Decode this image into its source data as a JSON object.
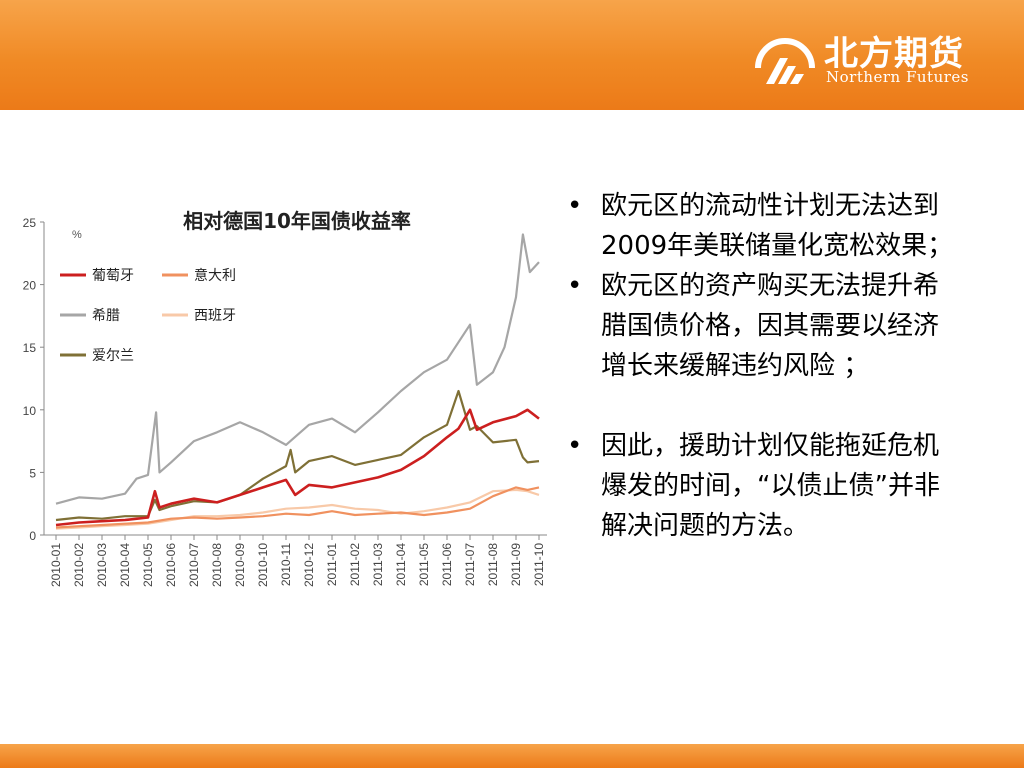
{
  "brand": {
    "name_cn": "北方期货",
    "name_en": "Northern Futures",
    "colors": {
      "header": "#f08a25",
      "footer": "#ec7a18",
      "text": "#ffffff"
    }
  },
  "bullets": [
    "欧元区的流动性计划无法达到2009年美联储量化宽松效果；",
    "欧元区的资产购买无法提升希腊国债价格，因其需要以经济增长来缓解违约风险 ；",
    "因此，援助计划仅能拖延危机爆发的时间，“以债止债”并非解决问题的方法。"
  ],
  "chart_data": {
    "type": "line",
    "title": "相对德国10年国债收益率",
    "ylabel": "%",
    "ylim": [
      0,
      25
    ],
    "yticks": [
      0,
      5,
      10,
      15,
      20,
      25
    ],
    "xticks": [
      "2010-01",
      "2010-02",
      "2010-03",
      "2010-04",
      "2010-05",
      "2010-06",
      "2010-07",
      "2010-08",
      "2010-09",
      "2010-10",
      "2010-11",
      "2010-12",
      "2011-01",
      "2011-02",
      "2011-03",
      "2011-04",
      "2011-05",
      "2011-06",
      "2011-07",
      "2011-08",
      "2011-09",
      "2011-10"
    ],
    "legend_position": "top-left",
    "series": [
      {
        "name": "葡萄牙",
        "color": "#cc1f1f",
        "x": [
          0,
          1,
          2,
          3,
          4,
          4.3,
          4.5,
          5,
          6,
          7,
          8,
          9,
          10,
          10.4,
          11,
          12,
          13,
          14,
          15,
          16,
          17,
          17.5,
          18,
          18.3,
          19,
          20,
          20.5,
          21
        ],
        "values": [
          0.8,
          1,
          1.1,
          1.2,
          1.4,
          3.5,
          2.2,
          2.5,
          2.9,
          2.6,
          3.2,
          3.8,
          4.4,
          3.2,
          4,
          3.8,
          4.2,
          4.6,
          5.2,
          6.3,
          7.8,
          8.5,
          10,
          8.4,
          9,
          9.5,
          10,
          9.3
        ]
      },
      {
        "name": "意大利",
        "color": "#f0915f",
        "x": [
          0,
          1,
          2,
          3,
          4,
          5,
          6,
          7,
          8,
          9,
          10,
          11,
          12,
          13,
          14,
          15,
          16,
          17,
          18,
          19,
          20,
          20.5,
          21
        ],
        "values": [
          0.6,
          0.7,
          0.8,
          0.9,
          1,
          1.3,
          1.4,
          1.3,
          1.4,
          1.5,
          1.7,
          1.6,
          1.9,
          1.6,
          1.7,
          1.8,
          1.6,
          1.8,
          2.1,
          3.1,
          3.8,
          3.6,
          3.8
        ]
      },
      {
        "name": "希腊",
        "color": "#a6a6a6",
        "x": [
          0,
          1,
          2,
          3,
          3.5,
          4,
          4.35,
          4.5,
          5,
          6,
          7,
          8,
          9,
          10,
          10.5,
          11,
          12,
          13,
          14,
          15,
          16,
          17,
          18,
          18.3,
          19,
          19.5,
          20,
          20.3,
          20.6,
          21
        ],
        "values": [
          2.5,
          3,
          2.9,
          3.3,
          4.5,
          4.8,
          9.8,
          5,
          5.8,
          7.5,
          8.2,
          9,
          8.2,
          7.2,
          8,
          8.8,
          9.3,
          8.2,
          9.8,
          11.5,
          13,
          14,
          16.8,
          12,
          13,
          15,
          19,
          24,
          21,
          21.8
        ]
      },
      {
        "name": "西班牙",
        "color": "#f8c9a8",
        "x": [
          0,
          1,
          2,
          3,
          4,
          5,
          6,
          7,
          8,
          9,
          10,
          11,
          12,
          13,
          14,
          15,
          16,
          17,
          18,
          19,
          20,
          20.5,
          21
        ],
        "values": [
          0.5,
          0.6,
          0.7,
          0.8,
          0.9,
          1.2,
          1.5,
          1.5,
          1.6,
          1.8,
          2.1,
          2.2,
          2.4,
          2.1,
          2,
          1.7,
          1.9,
          2.2,
          2.6,
          3.5,
          3.6,
          3.5,
          3.2
        ]
      },
      {
        "name": "爱尔兰",
        "color": "#7f7036",
        "x": [
          0,
          1,
          2,
          3,
          4,
          4.3,
          4.5,
          5,
          6,
          7,
          8,
          9,
          10,
          10.2,
          10.4,
          11,
          12,
          13,
          14,
          15,
          16,
          17,
          17.5,
          18,
          18.3,
          19,
          20,
          20.3,
          20.5,
          21
        ],
        "values": [
          1.2,
          1.4,
          1.3,
          1.5,
          1.5,
          2.8,
          2,
          2.3,
          2.7,
          2.6,
          3.2,
          4.5,
          5.5,
          6.8,
          5,
          5.9,
          6.3,
          5.6,
          6,
          6.4,
          7.8,
          8.8,
          11.5,
          8.4,
          8.7,
          7.4,
          7.6,
          6.2,
          5.8,
          5.9
        ]
      }
    ]
  }
}
